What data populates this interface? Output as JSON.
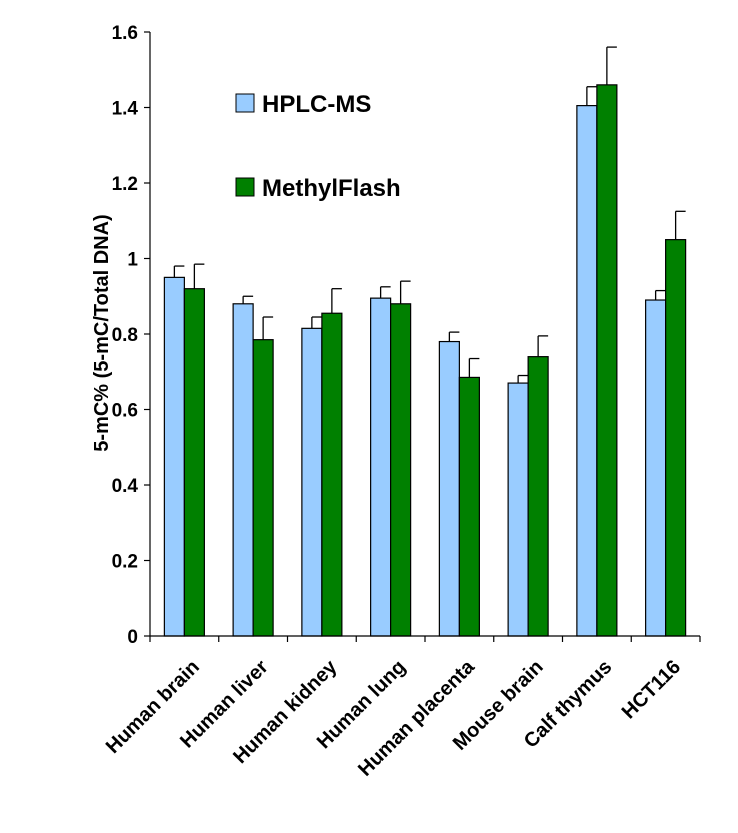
{
  "chart_data": {
    "type": "bar",
    "title": "",
    "xlabel": "",
    "ylabel": "5-mC% (5-mC/Total DNA)",
    "ylim": [
      0,
      1.6
    ],
    "yticks": [
      0,
      0.2,
      0.4,
      0.6,
      0.8,
      1,
      1.2,
      1.4,
      1.6
    ],
    "ytick_labels": [
      "0",
      "0.2",
      "0.4",
      "0.6",
      "0.8",
      "1",
      "1.2",
      "1.4",
      "1.6"
    ],
    "grid": false,
    "legend_position": "upper-left inside plot",
    "categories": [
      "Human brain",
      "Human liver",
      "Human kidney",
      "Human lung",
      "Human placenta",
      "Mouse brain",
      "Calf thymus",
      "HCT116"
    ],
    "series": [
      {
        "name": "HPLC-MS",
        "color": "#99ccff",
        "values": [
          0.95,
          0.88,
          0.815,
          0.895,
          0.78,
          0.67,
          1.405,
          0.89
        ],
        "errors": [
          0.03,
          0.02,
          0.03,
          0.03,
          0.025,
          0.02,
          0.05,
          0.025
        ]
      },
      {
        "name": "MethylFlash",
        "color": "#008000",
        "values": [
          0.92,
          0.785,
          0.855,
          0.88,
          0.685,
          0.74,
          1.46,
          1.05
        ],
        "errors": [
          0.065,
          0.06,
          0.065,
          0.06,
          0.05,
          0.055,
          0.1,
          0.075
        ]
      }
    ]
  }
}
